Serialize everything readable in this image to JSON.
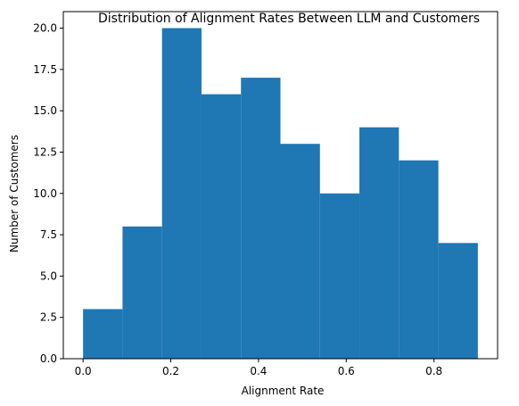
{
  "chart_data": {
    "type": "bar",
    "title": "Distribution of Alignment Rates Between LLM and Customers",
    "xlabel": "Alignment Rate",
    "ylabel": "Number of Customers",
    "bin_edges": [
      0.0,
      0.09,
      0.18,
      0.27,
      0.36,
      0.45,
      0.54,
      0.63,
      0.72,
      0.81,
      0.9
    ],
    "values": [
      3,
      8,
      20,
      16,
      17,
      13,
      10,
      14,
      12,
      7
    ],
    "xlim": [
      -0.045,
      0.945
    ],
    "ylim": [
      0,
      21
    ],
    "xticks": [
      0.0,
      0.2,
      0.4,
      0.6,
      0.8
    ],
    "xtick_labels": [
      "0.0",
      "0.2",
      "0.4",
      "0.6",
      "0.8"
    ],
    "yticks": [
      0,
      2.5,
      5,
      7.5,
      10,
      12.5,
      15,
      17.5,
      20
    ],
    "ytick_labels": [
      "0.0",
      "2.5",
      "5.0",
      "7.5",
      "10.0",
      "12.5",
      "15.0",
      "17.5",
      "20.0"
    ],
    "bar_color": "#1f77b4",
    "grid": false,
    "legend": false
  }
}
